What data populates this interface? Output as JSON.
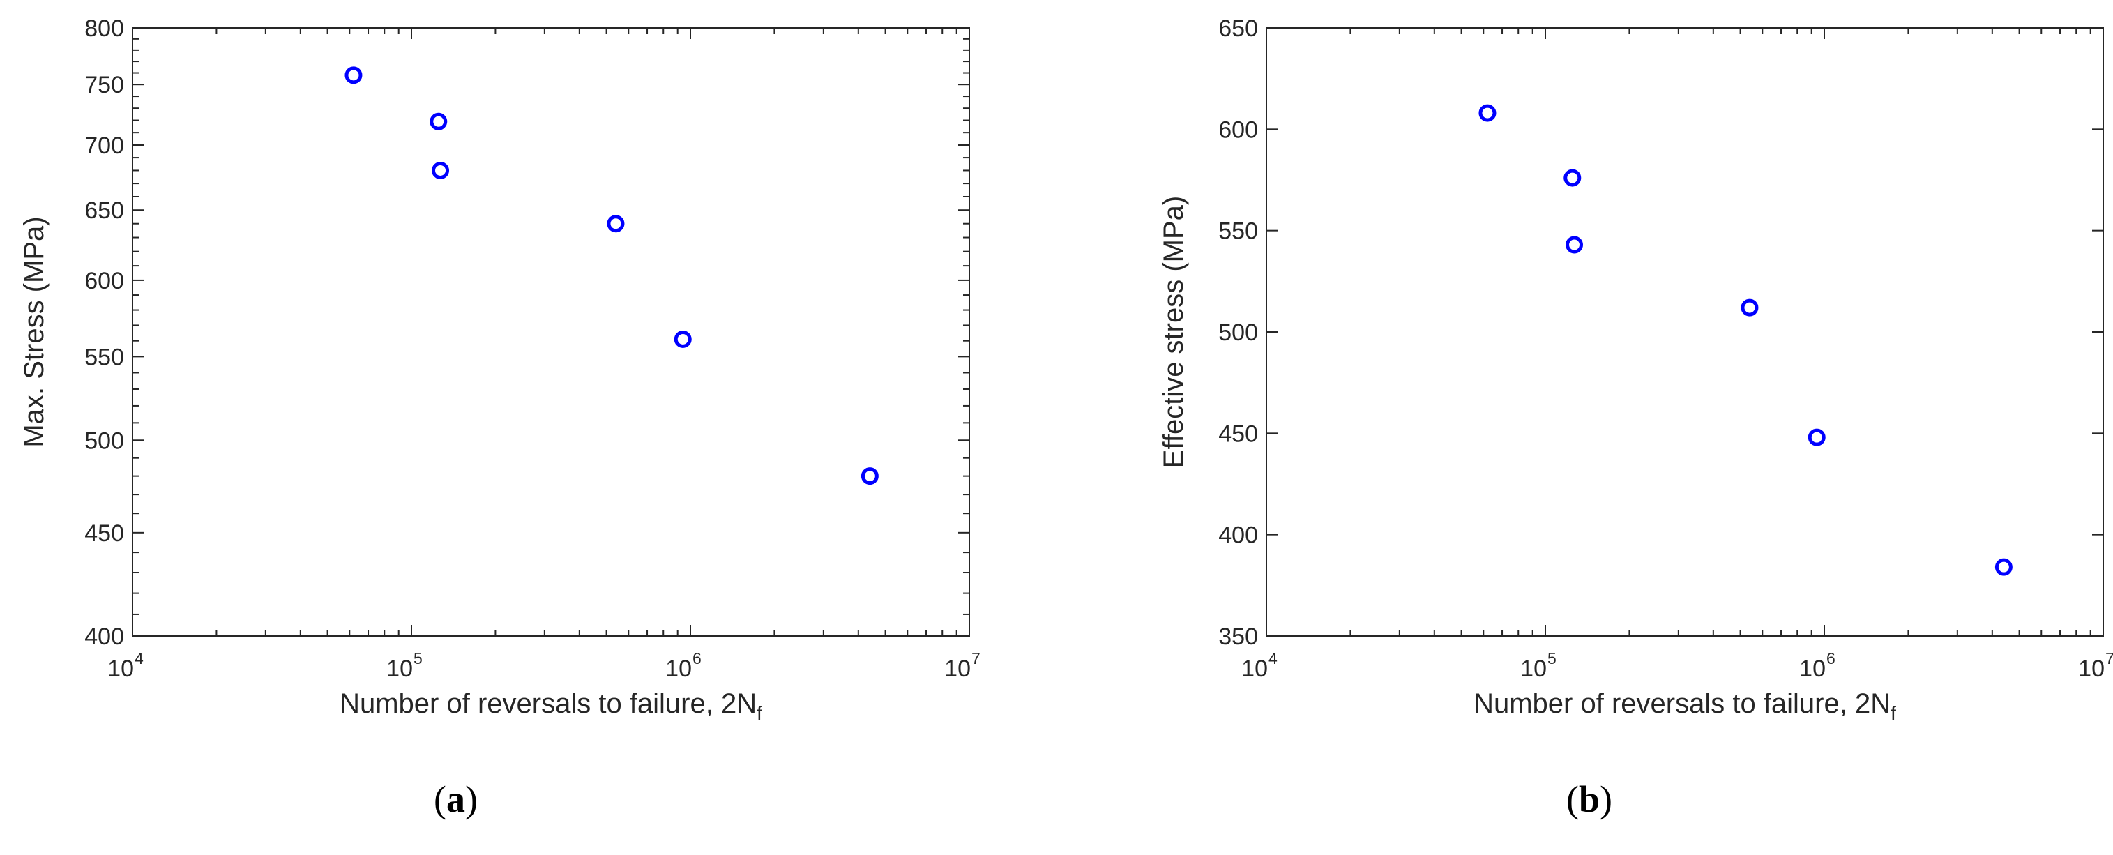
{
  "panels": [
    {
      "label": {
        "open": "(",
        "letter": "a",
        "close": ")"
      },
      "xlabel": "Number of reversals to failure, 2N",
      "xlabel_sub": "f",
      "ylabel": "Max. Stress (MPa)"
    },
    {
      "label": {
        "open": "(",
        "letter": "b",
        "close": ")"
      },
      "xlabel": "Number of reversals to failure, 2N",
      "xlabel_sub": "f",
      "ylabel": "Effective stress (MPa)"
    }
  ],
  "chart_data": [
    {
      "type": "scatter",
      "title": "",
      "xlabel": "Number of reversals to failure, 2Nf",
      "ylabel": "Max. Stress (MPa)",
      "x_scale": "log",
      "y_scale": "log",
      "xlim": [
        10000,
        10000000
      ],
      "ylim": [
        400,
        800
      ],
      "x_ticks": [
        {
          "base": "10",
          "exp": "4"
        },
        {
          "base": "10",
          "exp": "5"
        },
        {
          "base": "10",
          "exp": "6"
        },
        {
          "base": "10",
          "exp": "7"
        }
      ],
      "x_tick_values": [
        10000,
        100000,
        1000000,
        10000000
      ],
      "y_ticks": [
        400,
        450,
        500,
        550,
        600,
        650,
        700,
        750,
        800
      ],
      "grid": false,
      "marker": "open-circle",
      "color": "#0000ff",
      "x": [
        62000,
        125000,
        127000,
        540000,
        940000,
        4400000
      ],
      "y": [
        758,
        719,
        680,
        640,
        561,
        480
      ]
    },
    {
      "type": "scatter",
      "title": "",
      "xlabel": "Number of reversals to failure, 2Nf",
      "ylabel": "Effective stress (MPa)",
      "x_scale": "log",
      "y_scale": "linear",
      "xlim": [
        10000,
        10000000
      ],
      "ylim": [
        350,
        650
      ],
      "x_ticks": [
        {
          "base": "10",
          "exp": "4"
        },
        {
          "base": "10",
          "exp": "5"
        },
        {
          "base": "10",
          "exp": "6"
        },
        {
          "base": "10",
          "exp": "7"
        }
      ],
      "x_tick_values": [
        10000,
        100000,
        1000000,
        10000000
      ],
      "y_ticks": [
        350,
        400,
        450,
        500,
        550,
        600,
        650
      ],
      "grid": false,
      "marker": "open-circle",
      "color": "#0000ff",
      "x": [
        62000,
        125000,
        127000,
        540000,
        940000,
        4400000
      ],
      "y": [
        608,
        576,
        543,
        512,
        448,
        384
      ]
    }
  ]
}
